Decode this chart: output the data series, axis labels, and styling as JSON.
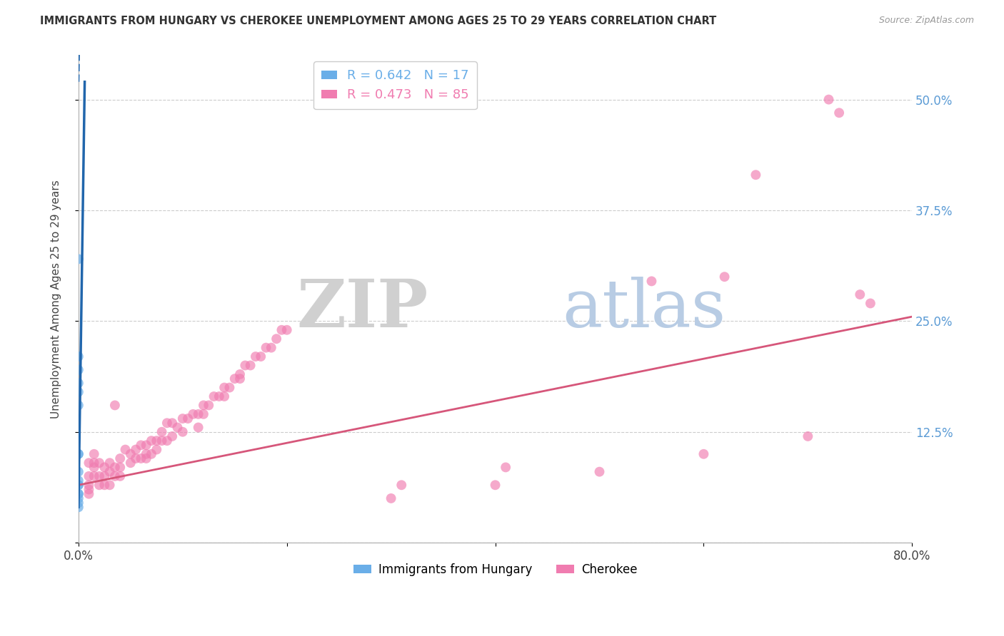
{
  "title": "IMMIGRANTS FROM HUNGARY VS CHEROKEE UNEMPLOYMENT AMONG AGES 25 TO 29 YEARS CORRELATION CHART",
  "source_text": "Source: ZipAtlas.com",
  "ylabel": "Unemployment Among Ages 25 to 29 years",
  "xlim": [
    0,
    0.8
  ],
  "ylim": [
    0,
    0.55
  ],
  "xtick_positions": [
    0.0,
    0.2,
    0.4,
    0.6,
    0.8
  ],
  "xtick_labels": [
    "0.0%",
    "",
    "",
    "",
    "80.0%"
  ],
  "ytick_positions": [
    0.0,
    0.125,
    0.25,
    0.375,
    0.5
  ],
  "ytick_labels": [
    "",
    "12.5%",
    "25.0%",
    "37.5%",
    "50.0%"
  ],
  "legend_R_items": [
    {
      "label": "R = 0.642   N = 17",
      "color": "#6aaee8"
    },
    {
      "label": "R = 0.473   N = 85",
      "color": "#f07cb0"
    }
  ],
  "watermark_zip": "ZIP",
  "watermark_atlas": "atlas",
  "hungary_color": "#6aaee8",
  "cherokee_color": "#f07cb0",
  "hungary_line_color": "#2166ac",
  "cherokee_line_color": "#d6567a",
  "bottom_legend": [
    {
      "label": "Immigrants from Hungary",
      "color": "#6aaee8"
    },
    {
      "label": "Cherokee",
      "color": "#f07cb0"
    }
  ],
  "hungary_scatter": [
    [
      0.0,
      0.195
    ],
    [
      0.0,
      0.32
    ],
    [
      0.0,
      0.21
    ],
    [
      0.0,
      0.17
    ],
    [
      0.0,
      0.155
    ],
    [
      0.0,
      0.1
    ],
    [
      0.0,
      0.18
    ],
    [
      0.0,
      0.08
    ],
    [
      0.0,
      0.055
    ],
    [
      0.0,
      0.1
    ],
    [
      0.0,
      0.07
    ],
    [
      0.0,
      0.065
    ],
    [
      0.0,
      0.065
    ],
    [
      0.0,
      0.055
    ],
    [
      0.0,
      0.05
    ],
    [
      0.0,
      0.045
    ],
    [
      0.0,
      0.04
    ]
  ],
  "cherokee_scatter": [
    [
      0.01,
      0.09
    ],
    [
      0.01,
      0.075
    ],
    [
      0.01,
      0.065
    ],
    [
      0.01,
      0.06
    ],
    [
      0.01,
      0.055
    ],
    [
      0.015,
      0.1
    ],
    [
      0.015,
      0.09
    ],
    [
      0.015,
      0.085
    ],
    [
      0.015,
      0.075
    ],
    [
      0.02,
      0.09
    ],
    [
      0.02,
      0.075
    ],
    [
      0.02,
      0.065
    ],
    [
      0.025,
      0.085
    ],
    [
      0.025,
      0.075
    ],
    [
      0.025,
      0.065
    ],
    [
      0.03,
      0.09
    ],
    [
      0.03,
      0.08
    ],
    [
      0.03,
      0.065
    ],
    [
      0.035,
      0.155
    ],
    [
      0.035,
      0.085
    ],
    [
      0.035,
      0.075
    ],
    [
      0.04,
      0.095
    ],
    [
      0.04,
      0.085
    ],
    [
      0.04,
      0.075
    ],
    [
      0.045,
      0.105
    ],
    [
      0.05,
      0.1
    ],
    [
      0.05,
      0.09
    ],
    [
      0.055,
      0.105
    ],
    [
      0.055,
      0.095
    ],
    [
      0.06,
      0.11
    ],
    [
      0.06,
      0.095
    ],
    [
      0.065,
      0.11
    ],
    [
      0.065,
      0.1
    ],
    [
      0.065,
      0.095
    ],
    [
      0.07,
      0.115
    ],
    [
      0.07,
      0.1
    ],
    [
      0.075,
      0.115
    ],
    [
      0.075,
      0.105
    ],
    [
      0.08,
      0.125
    ],
    [
      0.08,
      0.115
    ],
    [
      0.085,
      0.135
    ],
    [
      0.085,
      0.115
    ],
    [
      0.09,
      0.135
    ],
    [
      0.09,
      0.12
    ],
    [
      0.095,
      0.13
    ],
    [
      0.1,
      0.14
    ],
    [
      0.1,
      0.125
    ],
    [
      0.105,
      0.14
    ],
    [
      0.11,
      0.145
    ],
    [
      0.115,
      0.145
    ],
    [
      0.115,
      0.13
    ],
    [
      0.12,
      0.155
    ],
    [
      0.12,
      0.145
    ],
    [
      0.125,
      0.155
    ],
    [
      0.13,
      0.165
    ],
    [
      0.135,
      0.165
    ],
    [
      0.14,
      0.175
    ],
    [
      0.14,
      0.165
    ],
    [
      0.145,
      0.175
    ],
    [
      0.15,
      0.185
    ],
    [
      0.155,
      0.19
    ],
    [
      0.155,
      0.185
    ],
    [
      0.16,
      0.2
    ],
    [
      0.165,
      0.2
    ],
    [
      0.17,
      0.21
    ],
    [
      0.175,
      0.21
    ],
    [
      0.18,
      0.22
    ],
    [
      0.185,
      0.22
    ],
    [
      0.19,
      0.23
    ],
    [
      0.195,
      0.24
    ],
    [
      0.2,
      0.24
    ],
    [
      0.3,
      0.05
    ],
    [
      0.31,
      0.065
    ],
    [
      0.4,
      0.065
    ],
    [
      0.41,
      0.085
    ],
    [
      0.5,
      0.08
    ],
    [
      0.55,
      0.295
    ],
    [
      0.6,
      0.1
    ],
    [
      0.62,
      0.3
    ],
    [
      0.65,
      0.415
    ],
    [
      0.7,
      0.12
    ],
    [
      0.72,
      0.5
    ],
    [
      0.73,
      0.485
    ],
    [
      0.75,
      0.28
    ],
    [
      0.76,
      0.27
    ]
  ],
  "hungary_trendline_x": [
    0.0,
    0.006
  ],
  "hungary_trendline_y": [
    0.04,
    0.52
  ],
  "cherokee_trendline_x": [
    0.0,
    0.8
  ],
  "cherokee_trendline_y": [
    0.065,
    0.255
  ]
}
